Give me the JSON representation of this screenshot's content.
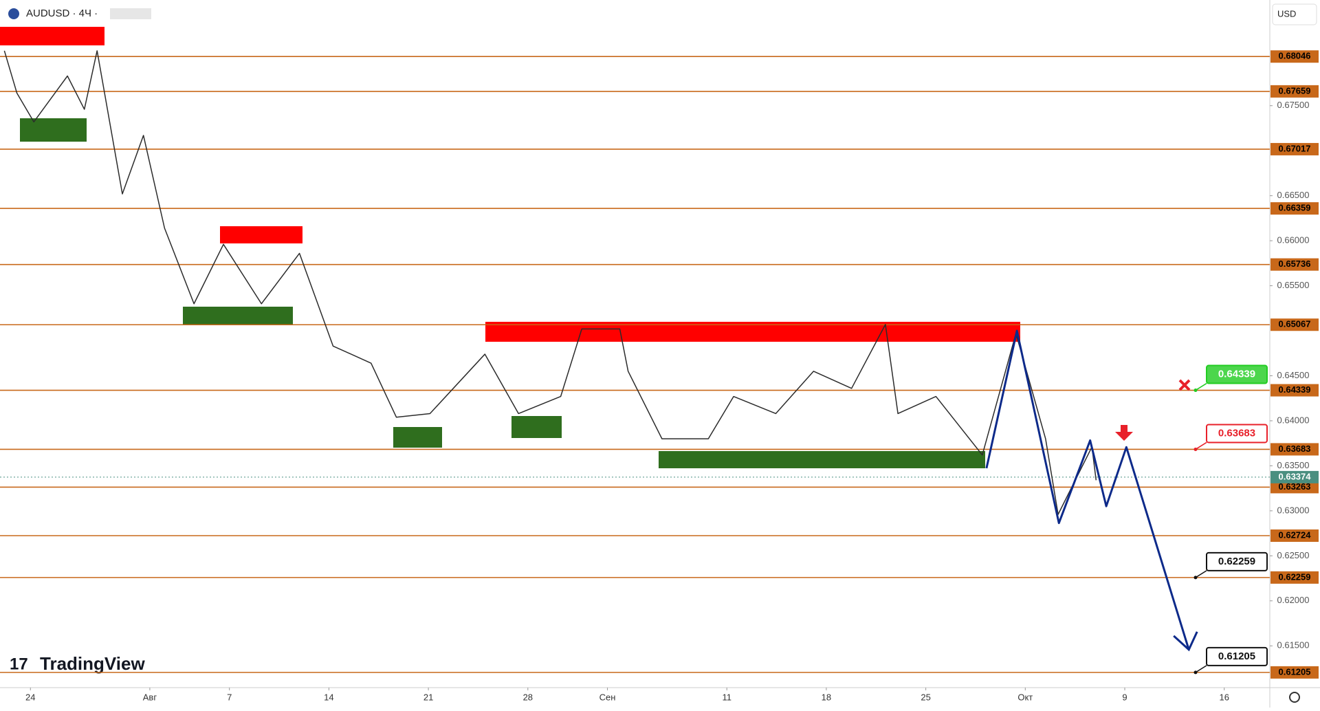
{
  "chart_data": {
    "type": "line",
    "title": "AUDUSD · 4Ч ·",
    "currency": "USD",
    "brand": "TradingView",
    "xlim": [
      -1.53,
      62.29
    ],
    "ylim": [
      0.61036,
      0.68674
    ],
    "xticks": [
      {
        "value": 0,
        "label": "24"
      },
      {
        "value": 6,
        "label": "Авг"
      },
      {
        "value": 10,
        "label": "7"
      },
      {
        "value": 15,
        "label": "14"
      },
      {
        "value": 20,
        "label": "21"
      },
      {
        "value": 25,
        "label": "28"
      },
      {
        "value": 29,
        "label": "Сен"
      },
      {
        "value": 35,
        "label": "11"
      },
      {
        "value": 40,
        "label": "18"
      },
      {
        "value": 45,
        "label": "25"
      },
      {
        "value": 50,
        "label": "Окт"
      },
      {
        "value": 55,
        "label": "9"
      },
      {
        "value": 60,
        "label": "16"
      }
    ],
    "yticks": [
      {
        "value": 0.675,
        "label": "0.67500"
      },
      {
        "value": 0.665,
        "label": "0.66500"
      },
      {
        "value": 0.66,
        "label": "0.66000"
      },
      {
        "value": 0.655,
        "label": "0.65500"
      },
      {
        "value": 0.645,
        "label": "0.64500"
      },
      {
        "value": 0.64,
        "label": "0.64000"
      },
      {
        "value": 0.635,
        "label": "0.63500"
      },
      {
        "value": 0.63,
        "label": "0.63000"
      },
      {
        "value": 0.625,
        "label": "0.62500"
      },
      {
        "value": 0.62,
        "label": "0.62000"
      },
      {
        "value": 0.615,
        "label": "0.61500"
      }
    ],
    "levels": {
      "color": "#c8681a",
      "values": [
        0.68046,
        0.67659,
        0.67017,
        0.66359,
        0.65736,
        0.65067,
        0.64339,
        0.63683,
        0.63263,
        0.62724,
        0.62259,
        0.61205
      ]
    },
    "current_price": {
      "value": 0.63374,
      "color": "#4a8f80"
    },
    "series": [
      {
        "color": "#2b2b2b",
        "x": [
          -1.31,
          -0.68,
          0.17,
          1.86,
          2.71,
          3.35,
          4.62,
          5.68,
          6.74,
          8.22,
          9.7,
          11.61,
          13.52,
          15.21,
          17.12,
          18.39,
          20.08,
          22.84,
          24.53,
          26.65,
          27.71,
          29.62,
          30.04,
          31.74,
          34.07,
          35.34,
          37.46,
          39.36,
          41.27,
          42.97,
          43.6,
          45.51,
          47.84,
          49.53,
          51.02,
          51.65,
          53.35,
          53.56
        ],
        "values": [
          0.6811,
          0.6764,
          0.6732,
          0.6783,
          0.6746,
          0.6811,
          0.6652,
          0.6717,
          0.6614,
          0.653,
          0.6596,
          0.653,
          0.6586,
          0.6483,
          0.6464,
          0.6404,
          0.6408,
          0.6474,
          0.6408,
          0.6427,
          0.6502,
          0.6502,
          0.6455,
          0.638,
          0.638,
          0.6427,
          0.6408,
          0.6455,
          0.6436,
          0.6507,
          0.6408,
          0.6427,
          0.6362,
          0.6497,
          0.638,
          0.6296,
          0.6371,
          0.6334
        ]
      },
      {
        "color": "#0d2a8a",
        "x": [
          48.05,
          49.58,
          51.69,
          53.26,
          54.07,
          55.08,
          58.22
        ],
        "values": [
          0.63473,
          0.65,
          0.62864,
          0.63782,
          0.63051,
          0.63707,
          0.61458
        ]
      }
    ],
    "callouts": [
      {
        "value": 0.64339,
        "color": "#22cc22"
      },
      {
        "value": 0.63683,
        "color": "#e8202a"
      },
      {
        "value": 0.62259,
        "color": "#111111"
      },
      {
        "value": 0.61205,
        "color": "#111111"
      }
    ]
  }
}
